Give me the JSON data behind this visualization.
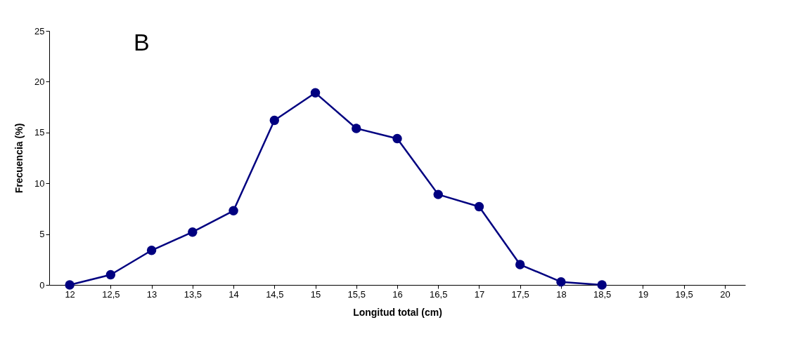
{
  "chart_data": {
    "type": "line",
    "xlabel": "Longitud total (cm)",
    "ylabel": "Frecuencia (%)",
    "annotations": [
      "B"
    ],
    "categories": [
      "12",
      "12,5",
      "13",
      "13,5",
      "14",
      "14,5",
      "15",
      "15,5",
      "16",
      "16,5",
      "17",
      "17,5",
      "18",
      "18,5",
      "19",
      "19,5",
      "20"
    ],
    "series": [
      {
        "color": "#000080",
        "values": [
          0,
          1.0,
          3.4,
          5.2,
          7.3,
          16.2,
          18.9,
          15.4,
          14.4,
          8.9,
          7.7,
          2.0,
          0.3,
          0,
          null,
          null,
          null
        ]
      }
    ],
    "ylim": [
      0,
      25
    ],
    "yticks": [
      0,
      5,
      10,
      15,
      20,
      25
    ],
    "grid": false,
    "marker": "circle",
    "line_style": "solid"
  }
}
